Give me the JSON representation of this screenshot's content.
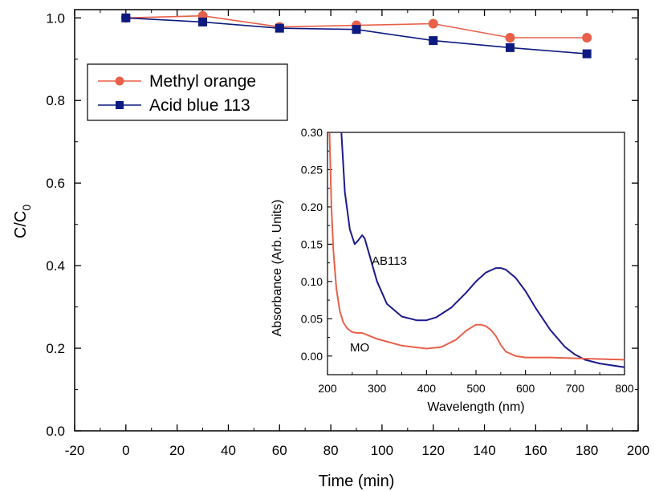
{
  "chart_data": [
    {
      "type": "line",
      "title": "",
      "xlabel": "Time (min)",
      "ylabel": "C/C",
      "ylabel_subscript": "0",
      "xlim": [
        -20,
        200
      ],
      "ylim": [
        0.0,
        1.02
      ],
      "x_ticks": [
        "-20",
        "0",
        "20",
        "40",
        "60",
        "80",
        "100",
        "120",
        "140",
        "160",
        "180",
        "200"
      ],
      "y_ticks": [
        "0.0",
        "0.2",
        "0.4",
        "0.6",
        "0.8",
        "1.0"
      ],
      "legend_position": "top-left",
      "grid": false,
      "x": [
        0,
        30,
        60,
        90,
        120,
        150,
        180
      ],
      "series": [
        {
          "name": "Methyl orange",
          "marker": "circle",
          "color": "#e8604a",
          "values": [
            1.0,
            1.005,
            0.978,
            0.982,
            0.986,
            0.952,
            0.952
          ]
        },
        {
          "name": "Acid blue 113",
          "marker": "square",
          "color": "#0d1a80",
          "values": [
            1.0,
            0.99,
            0.975,
            0.972,
            0.945,
            0.928,
            0.913
          ]
        }
      ]
    },
    {
      "type": "line",
      "title": "",
      "xlabel": "Wavelength (nm)",
      "ylabel": "Absorbance (Arb. Units)",
      "xlim": [
        200,
        800
      ],
      "ylim": [
        -0.025,
        0.3
      ],
      "x_ticks": [
        "200",
        "300",
        "400",
        "500",
        "600",
        "700",
        "800"
      ],
      "y_ticks": [
        "0.00",
        "0.05",
        "0.10",
        "0.15",
        "0.20",
        "0.25",
        "0.30"
      ],
      "grid": false,
      "series": [
        {
          "name": "AB113",
          "color": "#1b1a8c",
          "x": [
            228,
            235,
            245,
            255,
            262,
            270,
            275,
            285,
            300,
            320,
            350,
            380,
            400,
            420,
            450,
            480,
            500,
            520,
            540,
            550,
            560,
            580,
            600,
            620,
            650,
            680,
            700,
            720,
            750,
            800
          ],
          "values": [
            0.3,
            0.22,
            0.17,
            0.15,
            0.155,
            0.162,
            0.158,
            0.135,
            0.1,
            0.07,
            0.053,
            0.048,
            0.048,
            0.052,
            0.065,
            0.085,
            0.1,
            0.112,
            0.118,
            0.118,
            0.116,
            0.105,
            0.087,
            0.065,
            0.035,
            0.012,
            0.002,
            -0.005,
            -0.01,
            -0.015
          ]
        },
        {
          "name": "MO",
          "color": "#e8604a",
          "x": [
            204,
            208,
            212,
            218,
            225,
            232,
            240,
            250,
            260,
            270,
            285,
            300,
            350,
            400,
            430,
            460,
            480,
            500,
            510,
            520,
            530,
            540,
            550,
            560,
            580,
            600,
            650,
            700,
            750,
            800
          ],
          "values": [
            0.3,
            0.2,
            0.14,
            0.09,
            0.06,
            0.045,
            0.037,
            0.032,
            0.031,
            0.031,
            0.027,
            0.023,
            0.014,
            0.01,
            0.012,
            0.022,
            0.034,
            0.042,
            0.042,
            0.04,
            0.035,
            0.027,
            0.015,
            0.006,
            0.0,
            -0.002,
            -0.002,
            -0.003,
            -0.004,
            -0.005
          ]
        }
      ]
    }
  ]
}
